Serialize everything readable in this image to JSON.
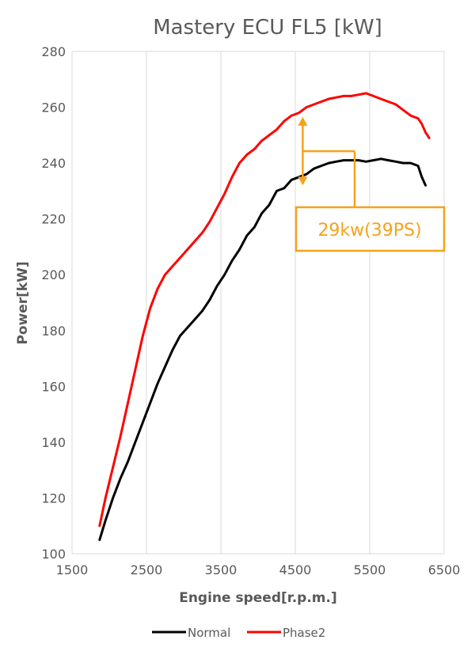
{
  "chart_data": {
    "type": "line",
    "title": "Mastery ECU FL5 [kW]",
    "xlabel": "Engine speed[r.p.m.]",
    "ylabel": "Power[kW]",
    "xlim": [
      1500,
      6500
    ],
    "ylim": [
      100,
      280
    ],
    "x_ticks": [
      "1500",
      "2500",
      "3500",
      "4500",
      "5500",
      "6500"
    ],
    "y_ticks": [
      "100",
      "120",
      "140",
      "160",
      "180",
      "200",
      "220",
      "240",
      "260",
      "280"
    ],
    "grid": "vertical",
    "legend_position": "bottom",
    "annotation": {
      "text": "29kw(39PS)",
      "x": 4600,
      "y_top": 256.5,
      "y_bottom": 232
    },
    "series": [
      {
        "name": "Normal",
        "color": "#000000",
        "x": [
          1870,
          1950,
          2050,
          2150,
          2250,
          2350,
          2450,
          2550,
          2650,
          2750,
          2850,
          2950,
          3050,
          3150,
          3250,
          3350,
          3450,
          3550,
          3650,
          3750,
          3850,
          3950,
          4050,
          4150,
          4250,
          4350,
          4450,
          4550,
          4650,
          4750,
          4850,
          4950,
          5050,
          5150,
          5250,
          5350,
          5450,
          5550,
          5650,
          5750,
          5850,
          5950,
          6050,
          6150,
          6200,
          6250
        ],
        "y": [
          105,
          112,
          120,
          127,
          133,
          140,
          147,
          154,
          161,
          167,
          173,
          178,
          181,
          184,
          187,
          191,
          196,
          200,
          205,
          209,
          214,
          217,
          222,
          225,
          230,
          231,
          234,
          235,
          236,
          238,
          239,
          240,
          240.5,
          241,
          241,
          241,
          240.5,
          241,
          241.5,
          241,
          240.5,
          240,
          240,
          239,
          235,
          232
        ]
      },
      {
        "name": "Phase2",
        "color": "#ff0000",
        "x": [
          1870,
          1950,
          2050,
          2150,
          2250,
          2350,
          2450,
          2550,
          2650,
          2750,
          2850,
          2950,
          3050,
          3150,
          3250,
          3350,
          3450,
          3550,
          3650,
          3750,
          3850,
          3950,
          4050,
          4150,
          4250,
          4350,
          4450,
          4550,
          4650,
          4750,
          4850,
          4950,
          5050,
          5150,
          5250,
          5350,
          5450,
          5550,
          5650,
          5750,
          5850,
          5950,
          6050,
          6150,
          6200,
          6250,
          6300
        ],
        "y": [
          110,
          120,
          131,
          142,
          154,
          166,
          178,
          188,
          195,
          200,
          203,
          206,
          209,
          212,
          215,
          219,
          224,
          229,
          235,
          240,
          243,
          245,
          248,
          250,
          252,
          255,
          257,
          258,
          260,
          261,
          262,
          263,
          263.5,
          264,
          264,
          264.5,
          265,
          264,
          263,
          262,
          261,
          259,
          257,
          256,
          254,
          251,
          249
        ]
      }
    ]
  }
}
